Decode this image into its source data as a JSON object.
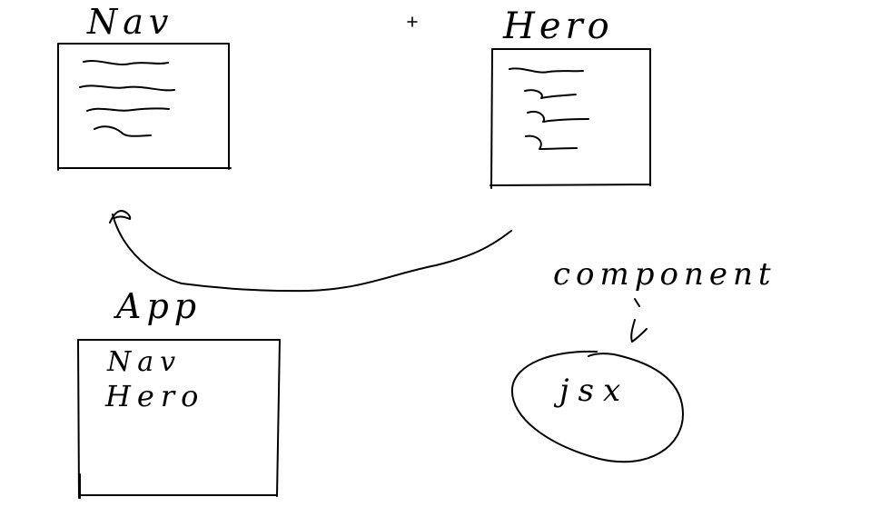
{
  "diagram": {
    "nav_box": {
      "label": "Nav"
    },
    "hero_box": {
      "label": "Hero"
    },
    "app_box": {
      "label": "App",
      "contents": [
        "Nav",
        "Hero"
      ]
    },
    "component_note": {
      "label": "component"
    },
    "jsx_bubble": {
      "label": "jsx"
    }
  },
  "colors": {
    "ink": "#000000",
    "background": "#ffffff"
  }
}
